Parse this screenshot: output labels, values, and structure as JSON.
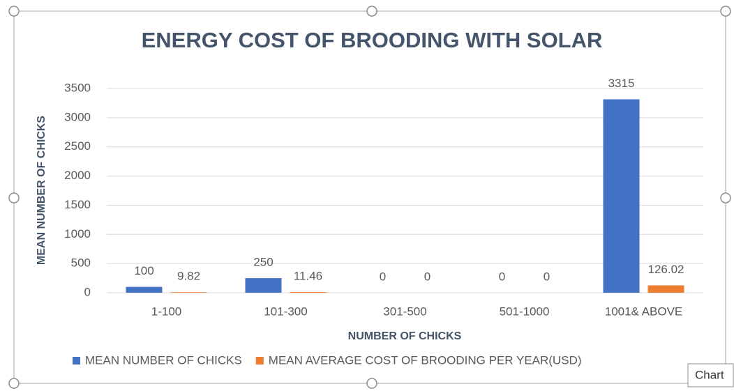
{
  "chart_data": {
    "type": "bar",
    "title": "ENERGY COST OF BROODING WITH SOLAR",
    "x_label": "NUMBER OF CHICKS",
    "y_label": "MEAN NUMBER OF CHICKS",
    "categories": [
      "1-100",
      "101-300",
      "301-500",
      "501-1000",
      "1001& ABOVE"
    ],
    "series": [
      {
        "name": "MEAN NUMBER OF CHICKS",
        "color": "#4472c4",
        "values": [
          100,
          250,
          0,
          0,
          3315
        ]
      },
      {
        "name": "MEAN AVERAGE COST OF BROODING PER YEAR(USD)",
        "color": "#ed7d31",
        "values": [
          9.82,
          11.46,
          0,
          0,
          126.02
        ]
      }
    ],
    "ylim": [
      0,
      3500
    ],
    "yticks": [
      0,
      500,
      1000,
      1500,
      2000,
      2500,
      3000,
      3500
    ],
    "grid": true,
    "legend": "bottom",
    "tooltip": "Chart"
  }
}
